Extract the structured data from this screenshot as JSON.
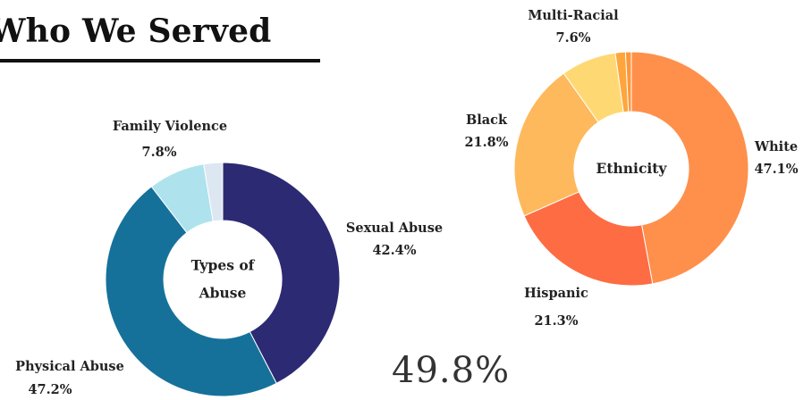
{
  "page": {
    "title": "Who We Served",
    "big_stat": "49.8%"
  },
  "chart_data": [
    {
      "type": "pie",
      "donut": true,
      "center_label": [
        "Types of",
        "Abuse"
      ],
      "start_at": "top",
      "direction": "clockwise",
      "slices": [
        {
          "name": "Sexual Abuse",
          "value": 42.4,
          "label": "42.4%",
          "color": "#2c2a73"
        },
        {
          "name": "Physical Abuse",
          "value": 47.2,
          "label": "47.2%",
          "color": "#16719a"
        },
        {
          "name": "Family Violence",
          "value": 7.8,
          "label": "7.8%",
          "color": "#aee3ed"
        },
        {
          "name": "",
          "value": 2.6,
          "label": "",
          "color": "#dde7f2"
        }
      ]
    },
    {
      "type": "pie",
      "donut": true,
      "center_label": [
        "Ethnicity"
      ],
      "start_at": "top",
      "direction": "clockwise",
      "slices": [
        {
          "name": "White",
          "value": 47.1,
          "label": "47.1%",
          "color": "#fe904b"
        },
        {
          "name": "Hispanic",
          "value": 21.3,
          "label": "21.3%",
          "color": "#fe6c43"
        },
        {
          "name": "Black",
          "value": 21.8,
          "label": "21.8%",
          "color": "#feb95d"
        },
        {
          "name": "Multi-Racial",
          "value": 7.6,
          "label": "7.6%",
          "color": "#fed872"
        },
        {
          "name": "",
          "value": 1.4,
          "label": "",
          "color": "#fea63d"
        },
        {
          "name": "",
          "value": 0.8,
          "label": "",
          "color": "#fe973a"
        }
      ]
    }
  ]
}
